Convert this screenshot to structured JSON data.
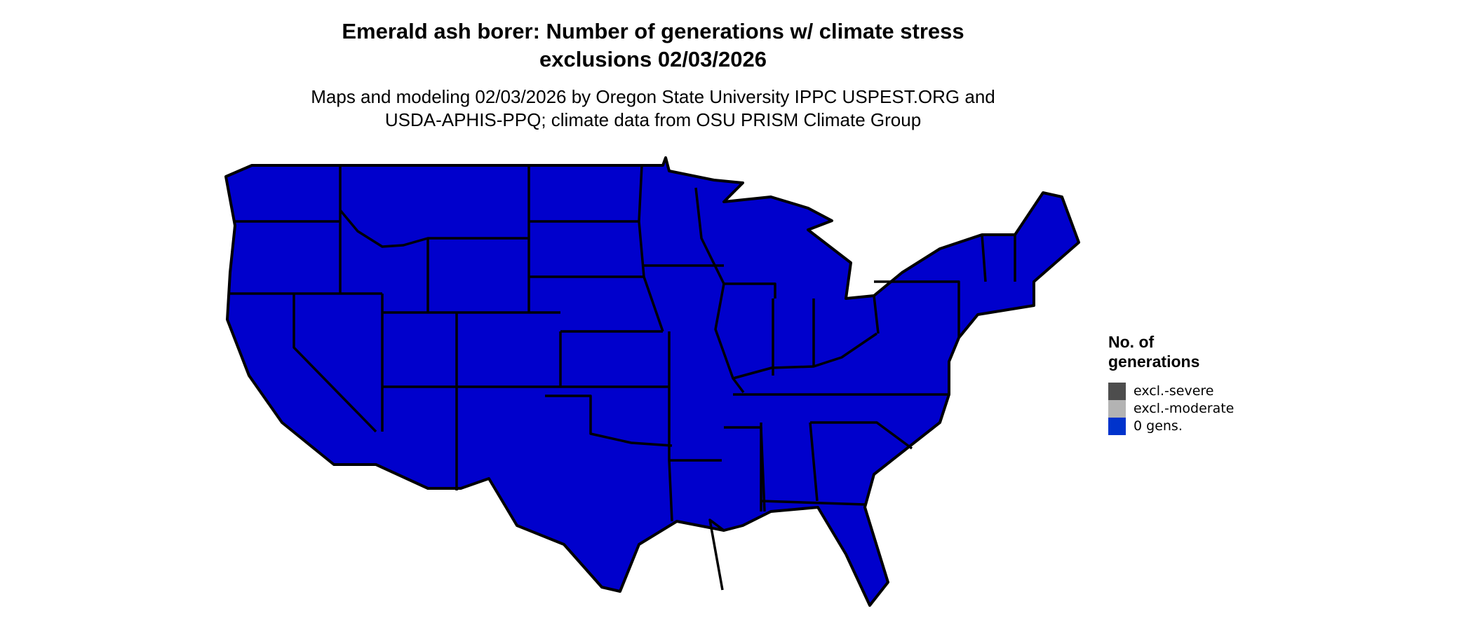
{
  "title": {
    "line1": "Emerald ash borer: Number of generations w/ climate stress",
    "line2": "exclusions 02/03/2026"
  },
  "subtitle": {
    "line1": "Maps and modeling 02/03/2026 by Oregon State University IPPC USPEST.ORG and",
    "line2": "USDA-APHIS-PPQ; climate data from OSU PRISM Climate Group"
  },
  "map": {
    "region": "Contiguous United States",
    "fill_color": "#0000CC",
    "border_color": "#000000",
    "value_shown": "0 gens."
  },
  "legend": {
    "title_line1": "No. of",
    "title_line2": "generations",
    "items": [
      {
        "label": "excl.-severe",
        "color": "#4D4D4D"
      },
      {
        "label": "excl.-moderate",
        "color": "#B3B3B3"
      },
      {
        "label": "0 gens.",
        "color": "#0033CC"
      }
    ]
  }
}
